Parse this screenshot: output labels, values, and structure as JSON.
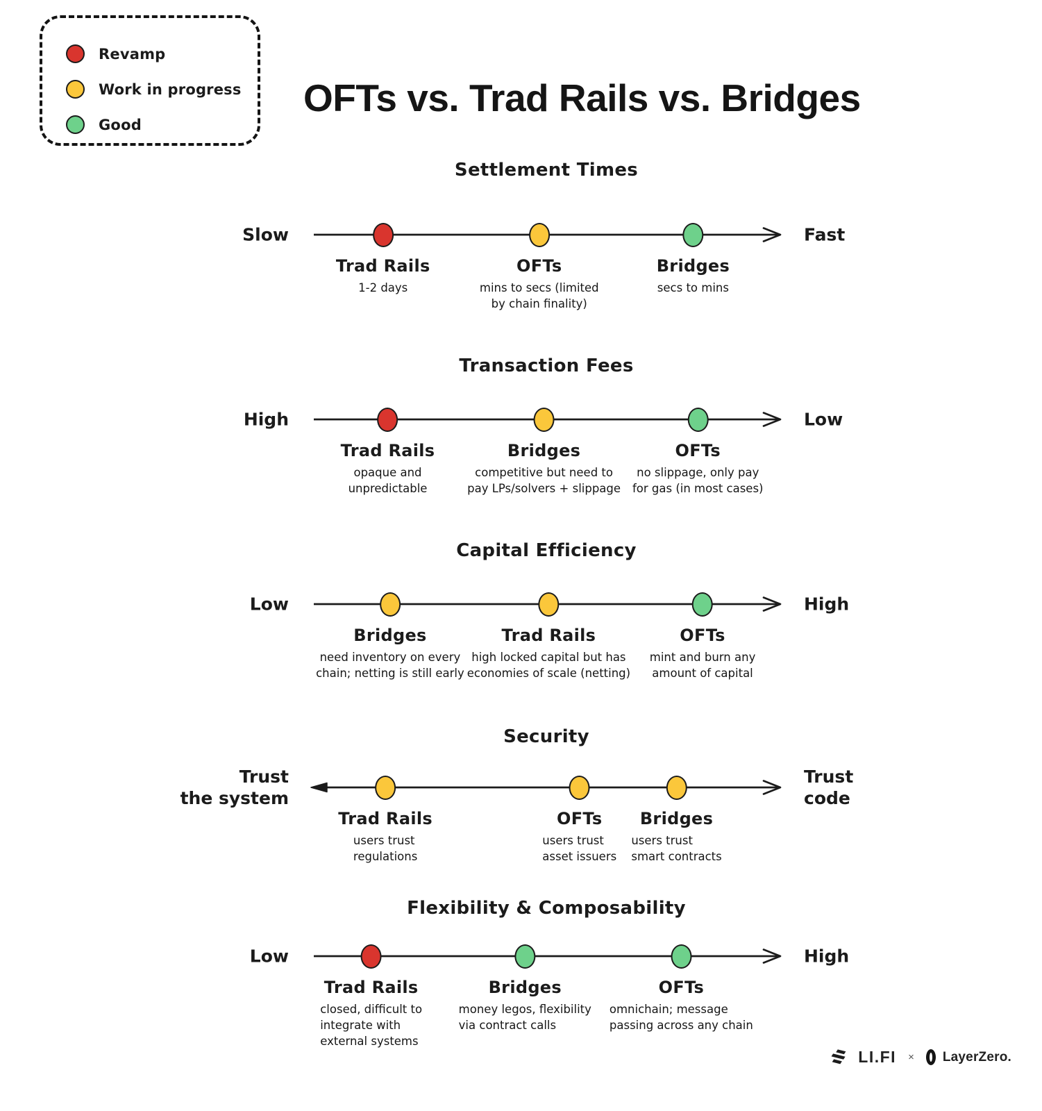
{
  "title": "OFTs vs. Trad Rails vs. Bridges",
  "colors": {
    "red": "#d9352e",
    "yellow": "#fbc73b",
    "green": "#6ed18b",
    "ink": "#1b1b1b"
  },
  "legend": {
    "items": [
      {
        "label": "Revamp",
        "color_key": "red"
      },
      {
        "label": "Work in progress",
        "color_key": "yellow"
      },
      {
        "label": "Good",
        "color_key": "green"
      }
    ]
  },
  "sections": [
    {
      "title": "Settlement Times",
      "left_label": "Slow",
      "right_label": "Fast",
      "arrow": "right",
      "points": [
        {
          "name": "Trad Rails",
          "desc": "1-2 days",
          "color_key": "red",
          "pos": 15.5
        },
        {
          "name": "OFTs",
          "desc": "mins to secs (limited\nby chain finality)",
          "color_key": "yellow",
          "pos": 48.5
        },
        {
          "name": "Bridges",
          "desc": "secs to mins",
          "color_key": "green",
          "pos": 81
        }
      ]
    },
    {
      "title": "Transaction Fees",
      "left_label": "High",
      "right_label": "Low",
      "arrow": "right",
      "points": [
        {
          "name": "Trad Rails",
          "desc": "opaque and\nunpredictable",
          "color_key": "red",
          "pos": 16.5
        },
        {
          "name": "Bridges",
          "desc": "competitive but need to\npay LPs/solvers + slippage",
          "color_key": "yellow",
          "pos": 49.5
        },
        {
          "name": "OFTs",
          "desc": "no slippage, only pay\nfor gas (in most cases)",
          "color_key": "green",
          "pos": 82
        }
      ]
    },
    {
      "title": "Capital Efficiency",
      "left_label": "Low",
      "right_label": "High",
      "arrow": "right",
      "points": [
        {
          "name": "Bridges",
          "desc": "need inventory on every\nchain; netting is still early",
          "color_key": "yellow",
          "pos": 17
        },
        {
          "name": "Trad Rails",
          "desc": "high locked capital but has\neconomies of scale (netting)",
          "color_key": "yellow",
          "pos": 50.5
        },
        {
          "name": "OFTs",
          "desc": "mint and burn any\namount of capital",
          "color_key": "green",
          "pos": 83
        }
      ]
    },
    {
      "title": "Security",
      "left_label": "Trust\nthe system",
      "right_label": "Trust\ncode",
      "arrow": "both",
      "points": [
        {
          "name": "Trad Rails",
          "desc": "users trust\nregulations",
          "color_key": "yellow",
          "pos": 16
        },
        {
          "name": "OFTs",
          "desc": "users trust\nasset issuers",
          "color_key": "yellow",
          "pos": 57
        },
        {
          "name": "Bridges",
          "desc": "users trust\nsmart contracts",
          "color_key": "yellow",
          "pos": 77.5
        }
      ]
    },
    {
      "title": "Flexibility & Composability",
      "left_label": "Low",
      "right_label": "High",
      "arrow": "right",
      "points": [
        {
          "name": "Trad Rails",
          "desc": "closed, difficult to\nintegrate with\nexternal systems",
          "color_key": "red",
          "pos": 13
        },
        {
          "name": "Bridges",
          "desc": "money legos, flexibility\nvia contract calls",
          "color_key": "green",
          "pos": 45.5
        },
        {
          "name": "OFTs",
          "desc": "omnichain; message\npassing across any chain",
          "color_key": "green",
          "pos": 78.5
        }
      ]
    }
  ],
  "footer": {
    "lifi_label": "LI.FI",
    "separator": "×",
    "layerzero_label": "LayerZero."
  }
}
